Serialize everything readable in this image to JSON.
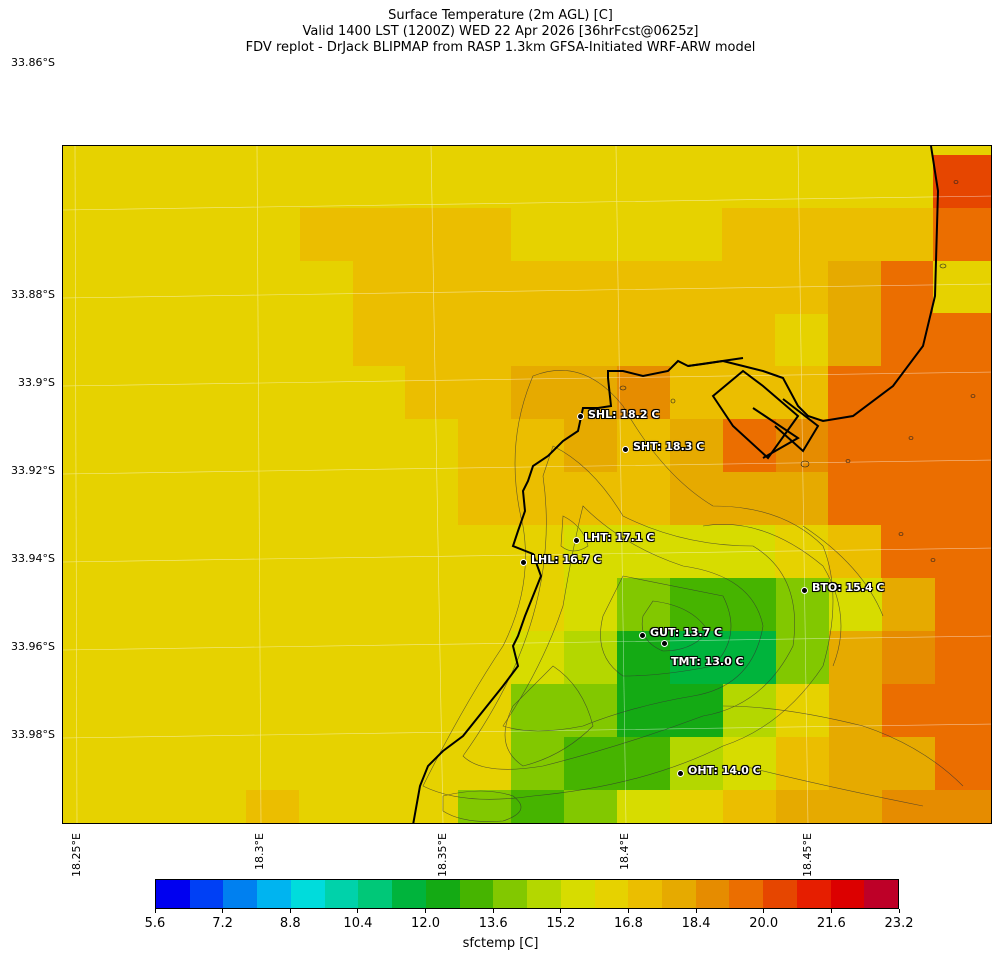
{
  "title_lines": [
    "Surface Temperature (2m AGL) [C]",
    "Valid 1400 LST (1200Z) WED 22 Apr 2026 [36hrFcst@0625z]",
    "FDV replot - DrJack BLIPMAP from RASP 1.3km GFSA-Initiated WRF-ARW model"
  ],
  "axes": {
    "lat_labels": [
      "33.86°S",
      "33.88°S",
      "33.9°S",
      "33.92°S",
      "33.94°S",
      "33.96°S",
      "33.98°S"
    ],
    "lon_labels": [
      "18.25°E",
      "18.3°E",
      "18.35°E",
      "18.4°E",
      "18.45°E"
    ]
  },
  "stations": [
    {
      "id": "SHL",
      "label": "SHL: 18.2 C"
    },
    {
      "id": "SHT",
      "label": "SHT: 18.3 C"
    },
    {
      "id": "LHT",
      "label": "LHT: 17.1 C"
    },
    {
      "id": "LHL",
      "label": "LHL: 16.7 C"
    },
    {
      "id": "BTO",
      "label": "BTO: 15.4 C"
    },
    {
      "id": "GUT",
      "label": "GUT: 13.7 C"
    },
    {
      "id": "TMT",
      "label": "TMT: 13.0 C"
    },
    {
      "id": "OHT",
      "label": "OHT: 14.0 C"
    }
  ],
  "colorbar": {
    "title": "sfctemp [C]",
    "tick_labels": [
      "5.6",
      "7.2",
      "8.8",
      "10.4",
      "12.0",
      "13.6",
      "15.2",
      "16.8",
      "18.4",
      "20.0",
      "21.6",
      "23.2"
    ],
    "colors": [
      "#0000f0",
      "#0040f5",
      "#0080f0",
      "#00b4f0",
      "#00dcdc",
      "#00d2aa",
      "#00c878",
      "#00b43c",
      "#14aa14",
      "#46b400",
      "#82c800",
      "#b4d700",
      "#d7dc00",
      "#e6d200",
      "#ebbe00",
      "#e6aa00",
      "#e68c00",
      "#eb6e00",
      "#e64600",
      "#e61e00",
      "#dc0000",
      "#be0028"
    ]
  }
}
